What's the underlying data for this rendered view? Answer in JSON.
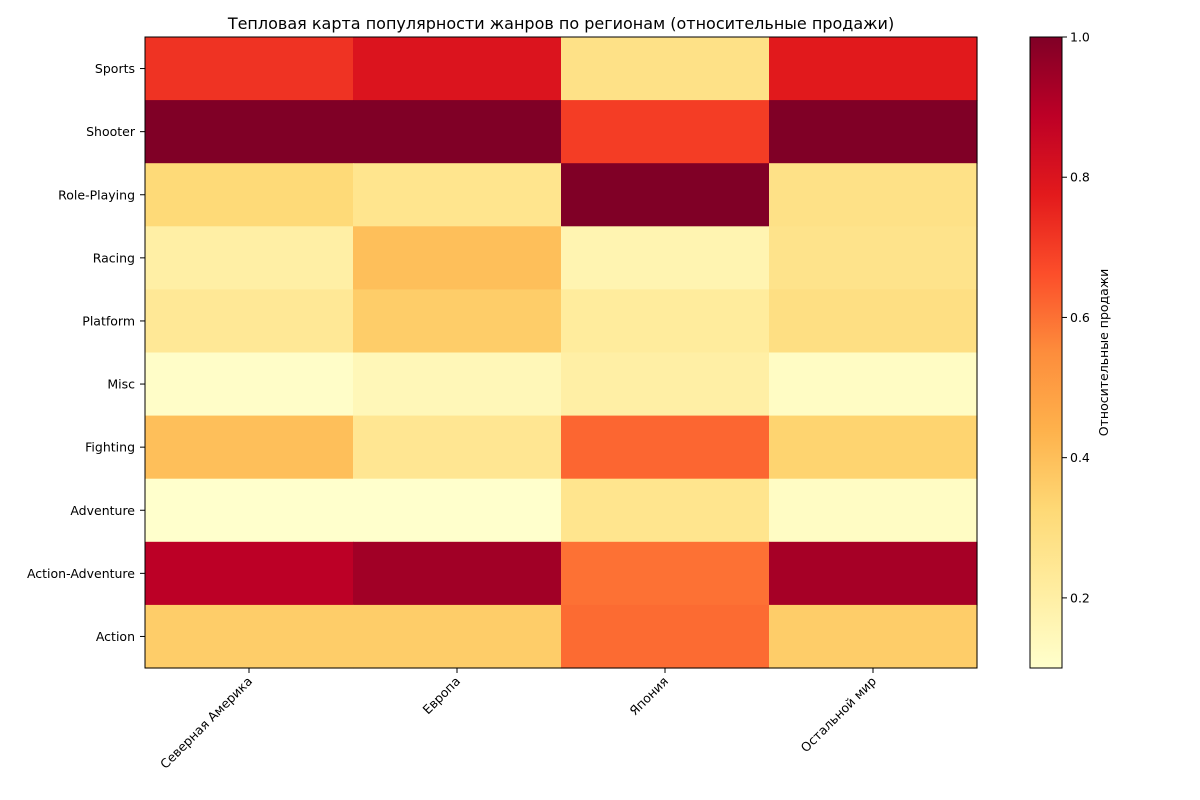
{
  "chart_data": {
    "type": "heatmap",
    "title": "Тепловая карта популярности жанров по регионам (относительные продажи)",
    "x_categories": [
      "Северная Америка",
      "Европа",
      "Япония",
      "Остальной мир"
    ],
    "y_categories": [
      "Sports",
      "Shooter",
      "Role-Playing",
      "Racing",
      "Platform",
      "Misc",
      "Fighting",
      "Adventure",
      "Action-Adventure",
      "Action"
    ],
    "values": [
      [
        0.72,
        0.8,
        0.28,
        0.78
      ],
      [
        1.0,
        1.0,
        0.7,
        1.0
      ],
      [
        0.32,
        0.26,
        1.0,
        0.28
      ],
      [
        0.2,
        0.4,
        0.17,
        0.27
      ],
      [
        0.24,
        0.36,
        0.22,
        0.29
      ],
      [
        0.11,
        0.15,
        0.2,
        0.12
      ],
      [
        0.4,
        0.25,
        0.62,
        0.34
      ],
      [
        0.1,
        0.1,
        0.26,
        0.12
      ],
      [
        0.89,
        0.94,
        0.6,
        0.93
      ],
      [
        0.36,
        0.36,
        0.61,
        0.36
      ]
    ],
    "colormap": "YlOrRd",
    "colormap_stops": [
      "#ffffcc",
      "#ffeda0",
      "#fed976",
      "#feb24c",
      "#fd8d3c",
      "#fc4e2a",
      "#e31a1c",
      "#bd0026",
      "#800026"
    ],
    "vmin": 0.1,
    "vmax": 1.0,
    "colorbar": {
      "label": "Относительные продажи",
      "ticks": [
        0.2,
        0.4,
        0.6,
        0.8,
        1.0
      ],
      "tick_labels": [
        "0.2",
        "0.4",
        "0.6",
        "0.8",
        "1.0"
      ]
    },
    "grid": false
  }
}
